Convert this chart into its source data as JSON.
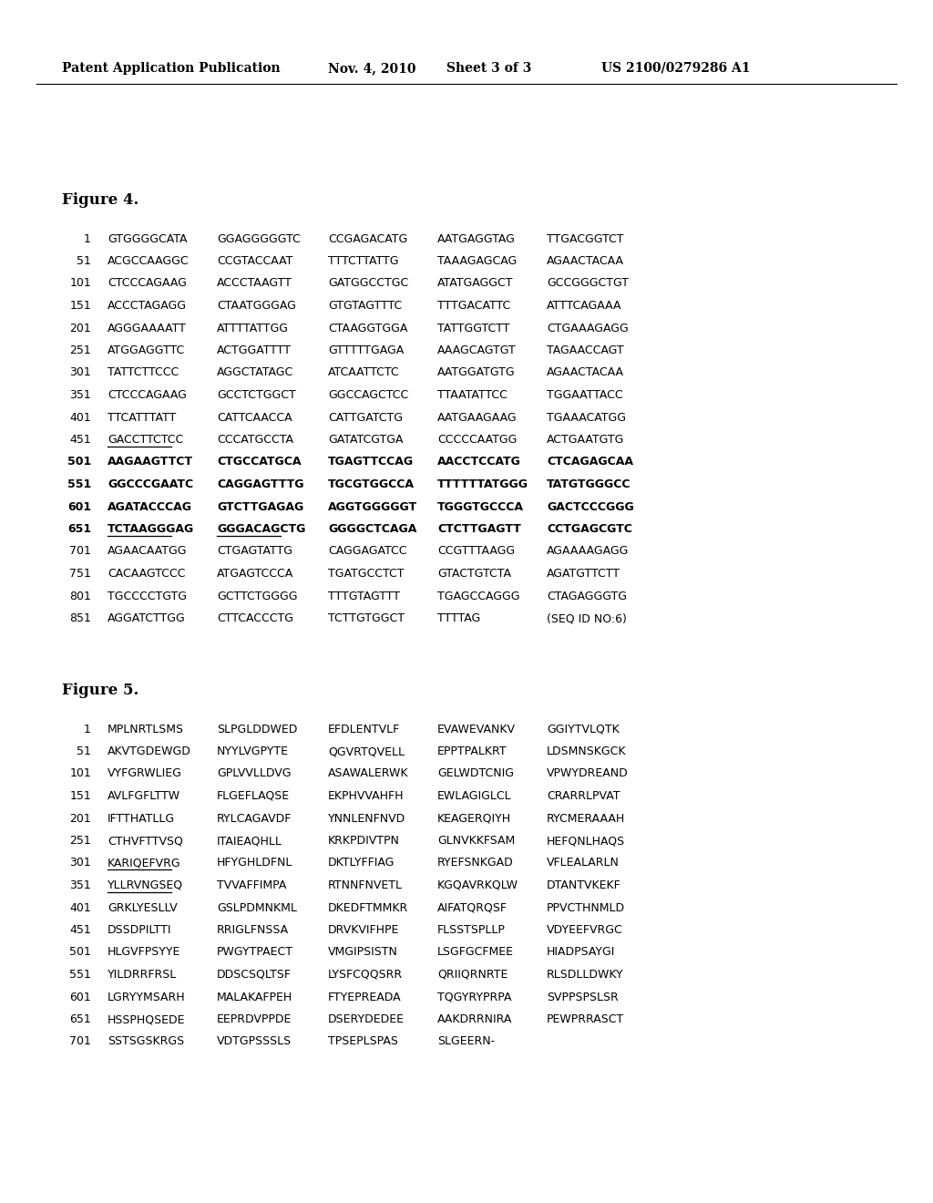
{
  "header_left": "Patent Application Publication",
  "header_center": "Nov. 4, 2010   Sheet 3 of 3",
  "header_right": "US 2100/0279286 A1",
  "fig4_title": "Figure 4.",
  "fig4_lines": [
    [
      "1",
      "GTGGGGCATA",
      "GGAGGGGGTC",
      "CCGAGACATG",
      "AATGAGGTAG",
      "TTGACGGTCT"
    ],
    [
      "51",
      "ACGCCAAGGC",
      "CCGTACCAAT",
      "TTTCTTATTG",
      "TAAAGAGCAG",
      "AGAACTACAA"
    ],
    [
      "101",
      "CTCCCAGAAG",
      "ACCCTAAGTT",
      "GATGGCCTGC",
      "ATATGAGGCT",
      "GCCGGGCTGT"
    ],
    [
      "151",
      "ACCCTAGAGG",
      "CTAATGGGAG",
      "GTGTAGTTTC",
      "TTTGACATTC",
      "ATTTCAGAAA"
    ],
    [
      "201",
      "AGGGAAAATT",
      "ATTTTATTGG",
      "CTAAGGTGGA",
      "TATTGGTCTT",
      "CTGAAAGAGG"
    ],
    [
      "251",
      "ATGGAGGTTC",
      "ACTGGATTTT",
      "GTTTTTGAGA",
      "AAAGCAGTGT",
      "TAGAACCAGT"
    ],
    [
      "301",
      "TATTCTTCCC",
      "AGGCTATAGC",
      "ATCAATTCTC",
      "AATGGATGTG",
      "AGAACTACAA"
    ],
    [
      "351",
      "CTCCCAGAAG",
      "GCCTCTGGCT",
      "GGCCAGCTCC",
      "TTAATATTCC",
      "TGGAATTACC"
    ],
    [
      "401",
      "TTCATTTATT",
      "CATTCAACCA",
      "CATTGATCTG",
      "AATGAAGAAG",
      "TGAAACATGG"
    ],
    [
      "451",
      "GACCTTCTCC",
      "CCCATGCCTA",
      "GATATCGTGA",
      "CCCCCAATGG",
      "ACTGAATGTG"
    ],
    [
      "501",
      "AAGAAGTTCT",
      "CTGCCATGCA",
      "TGAGTTCCAG",
      "AACCTCCATG",
      "CTCAGAGCAA"
    ],
    [
      "551",
      "GGCCCGAATC",
      "CAGGAGTTTG",
      "TGCGTGGCCA",
      "TTTTTTATGGG",
      "TATGTGGGCC"
    ],
    [
      "601",
      "AGATACCCAG",
      "GTCTTGAGAG",
      "AGGTGGGGGT",
      "TGGGTGCCCA",
      "GACTCCCGGG"
    ],
    [
      "651",
      "TCTAAGGGAG",
      "GGGACAGCTG",
      "GGGGCTCAGA",
      "CTCTTGAGTT",
      "CCTGAGCGTC"
    ],
    [
      "701",
      "AGAACAATGG",
      "CTGAGTATTG",
      "CAGGAGATCC",
      "CCGTTTAAGG",
      "AGAAAAGAGG"
    ],
    [
      "751",
      "CACAAGTCCC",
      "ATGAGTCCCA",
      "TGATGCCTCT",
      "GTACTGTCTA",
      "AGATGTTCTT"
    ],
    [
      "801",
      "TGCCCCTGTG",
      "GCTTCTGGGG",
      "TTTGTAGTTT",
      "TGAGCCAGGG",
      "CTAGAGGGTG"
    ],
    [
      "851",
      "AGGATCTTGG",
      "CTTCACCCTG",
      "TCTTGTGGCT",
      "TTTTAG",
      "(SEQ ID NO:6)"
    ]
  ],
  "fig4_bold_indices": [
    10,
    11,
    12,
    13
  ],
  "fig4_underline": [
    {
      "row": 9,
      "col": 1
    },
    {
      "row": 13,
      "col": 1
    },
    {
      "row": 13,
      "col": 2
    }
  ],
  "fig5_title": "Figure 5.",
  "fig5_lines": [
    [
      "1",
      "MPLNRTLSMS",
      "SLPGLDDWED",
      "EFDLENTVLF",
      "EVAWEVANKV",
      "GGIYTVLQTK"
    ],
    [
      "51",
      "AKVTGDEWGD",
      "NYYLVGPYTE",
      "QGVRTQVELL",
      "EPPTPALKRT",
      "LDSMNSKGCK"
    ],
    [
      "101",
      "VYFGRWLIEG",
      "GPLVVLLDVG",
      "ASAWALERWK",
      "GELWDTCNIG",
      "VPWYDREAND"
    ],
    [
      "151",
      "AVLFGFLTTW",
      "FLGEFLAQSE",
      "EKPHVVAHFH",
      "EWLAGIGLCL",
      "CRARRLPVAT"
    ],
    [
      "201",
      "IFTTHATLLG",
      "RYLCAGAVDF",
      "YNNLENFNVD",
      "KEAGERQIYH",
      "RYCMERAAAH"
    ],
    [
      "251",
      "CTHVFTTVSQ",
      "ITAIEAQHLL",
      "KRKPDIVTPN",
      "GLNVKKFSAM",
      "HEFQNLHAQS"
    ],
    [
      "301",
      "KARIQEFVRG",
      "HFYGHLDFNL",
      "DKTLYFFIAG",
      "RYEFSNKGAD",
      "VFLEALARLN"
    ],
    [
      "351",
      "YLLRVNGSEQ",
      "TVVAFFIMPA",
      "RTNNFNVETL",
      "KGQAVRKQLW",
      "DTANTVKEKF"
    ],
    [
      "401",
      "GRKLYESLLV",
      "GSLPDMNKML",
      "DKEDFTMMKR",
      "AIFATQRQSF",
      "PPVCTHNMLD"
    ],
    [
      "451",
      "DSSDPILTTI",
      "RRIGLFNSSA",
      "DRVKVIFHPE",
      "FLSSTSPLLP",
      "VDYEEFVRGC"
    ],
    [
      "501",
      "HLGVFPSYYE",
      "PWGYTPAECT",
      "VMGIPSISTN",
      "LSGFGCFMEE",
      "HIADPSAYGI"
    ],
    [
      "551",
      "YILDRRFRSL",
      "DDSCSQLTSF",
      "LYSFCQQSRR",
      "QRIIQRNRTE",
      "RLSDLLDWKY"
    ],
    [
      "601",
      "LGRYYMSARH",
      "MALAKAFPEH",
      "FTYEPREADA",
      "TQGYRYPRPA",
      "SVPPSPSLSR"
    ],
    [
      "651",
      "HSSPHQSEDE",
      "EEPRDVPPDE",
      "DSERYDEDEE",
      "AAKDRRNIRA",
      "PEWPRRASCT"
    ],
    [
      "701",
      "SSTSGSKRGS",
      "VDTGPSSSLS",
      "TPSEPLSPAS",
      "SLGEERN-",
      ""
    ]
  ],
  "fig5_underline": [
    {
      "row": 6,
      "col": 1
    },
    {
      "row": 7,
      "col": 1
    }
  ],
  "background_color": "#ffffff",
  "text_color": "#000000"
}
